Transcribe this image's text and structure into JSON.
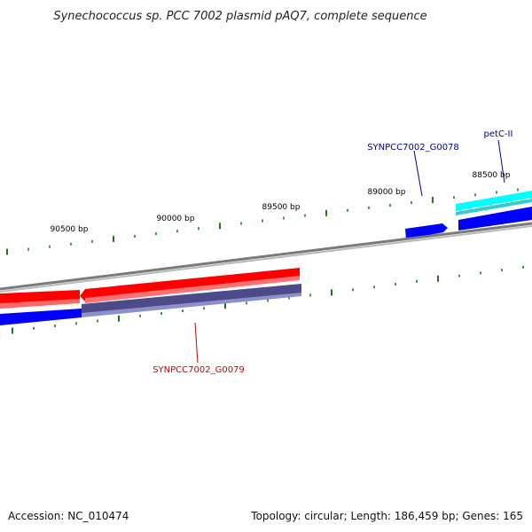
{
  "title": "Synechococcus sp. PCC 7002 plasmid pAQ7, complete sequence",
  "footer": {
    "accession": "Accession: NC_010474",
    "summary": "Topology: circular; Length: 186,459 bp; Genes: 165"
  },
  "scale_labels": [
    "90500 bp",
    "90000 bp",
    "89500 bp",
    "89000 bp",
    "88500 bp"
  ],
  "genes": [
    {
      "name": "SYNPCC7002_G0078",
      "color": "#00008b"
    },
    {
      "name": "petC-II",
      "color": "#00008b"
    },
    {
      "name": "SYNPCC7002_G0079",
      "color": "#cc0000"
    }
  ],
  "colors": {
    "backbone": "#808080",
    "forward_gene": "#ff0000",
    "reverse_gene": "#0000ff",
    "rna_gene": "#00ffff",
    "cds_track": "#4b4b8a",
    "tick": "#1a7a1a"
  }
}
